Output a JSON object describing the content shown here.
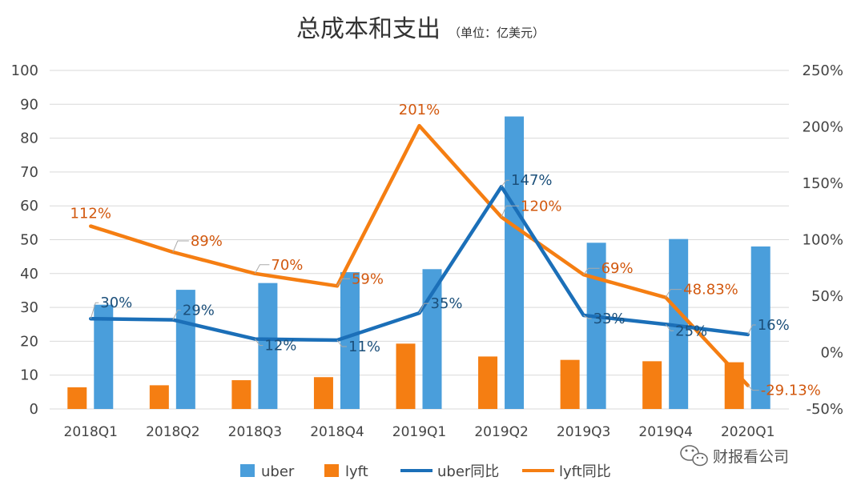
{
  "chart_data": {
    "type": "bar+line",
    "title": "总成本和支出",
    "subtitle": "（单位：亿美元）",
    "categories": [
      "2018Q1",
      "2018Q2",
      "2018Q3",
      "2018Q4",
      "2019Q1",
      "2019Q2",
      "2019Q3",
      "2019Q4",
      "2020Q1"
    ],
    "left_axis": {
      "ylim": [
        0,
        100
      ],
      "ticks": [
        0,
        10,
        20,
        30,
        40,
        50,
        60,
        70,
        80,
        90,
        100
      ]
    },
    "right_axis": {
      "ylim": [
        -50,
        250
      ],
      "ticks": [
        "-50%",
        "0%",
        "50%",
        "100%",
        "150%",
        "200%",
        "250%"
      ],
      "tick_values": [
        -50,
        0,
        50,
        100,
        150,
        200,
        250
      ]
    },
    "series": [
      {
        "name": "uber",
        "kind": "bar",
        "axis": "left",
        "color": "#4A9EDB",
        "values": [
          30.8,
          35.2,
          37.2,
          40.4,
          41.3,
          86.4,
          49.1,
          50.2,
          48.0
        ]
      },
      {
        "name": "lyft",
        "kind": "bar",
        "axis": "left",
        "color": "#F57E12",
        "values": [
          6.4,
          7.0,
          8.5,
          9.4,
          19.3,
          15.5,
          14.5,
          14.1,
          13.8
        ]
      },
      {
        "name": "uber同比",
        "kind": "line",
        "axis": "right",
        "color": "#1B6FB8",
        "values": [
          30,
          29,
          12,
          11,
          35,
          147,
          33,
          25,
          16
        ],
        "labels": [
          "30%",
          "29%",
          "12%",
          "11%",
          "35%",
          "147%",
          "33%",
          "25%",
          "16%"
        ]
      },
      {
        "name": "lyft同比",
        "kind": "line",
        "axis": "right",
        "color": "#F57E12",
        "values": [
          112,
          89,
          70,
          59,
          201,
          120,
          69,
          48.83,
          -29.13
        ],
        "labels": [
          "112%",
          "89%",
          "70%",
          "59%",
          "201%",
          "120%",
          "69%",
          "48.83%",
          "-29.13%"
        ]
      }
    ],
    "legend": [
      "uber",
      "lyft",
      "uber同比",
      "lyft同比"
    ],
    "legend_position": "bottom",
    "grid": true,
    "label_text_colors": {
      "uber同比": "#1B4F7A",
      "lyft同比": "#D2580E"
    }
  },
  "watermark": {
    "text": "财报看公司"
  }
}
